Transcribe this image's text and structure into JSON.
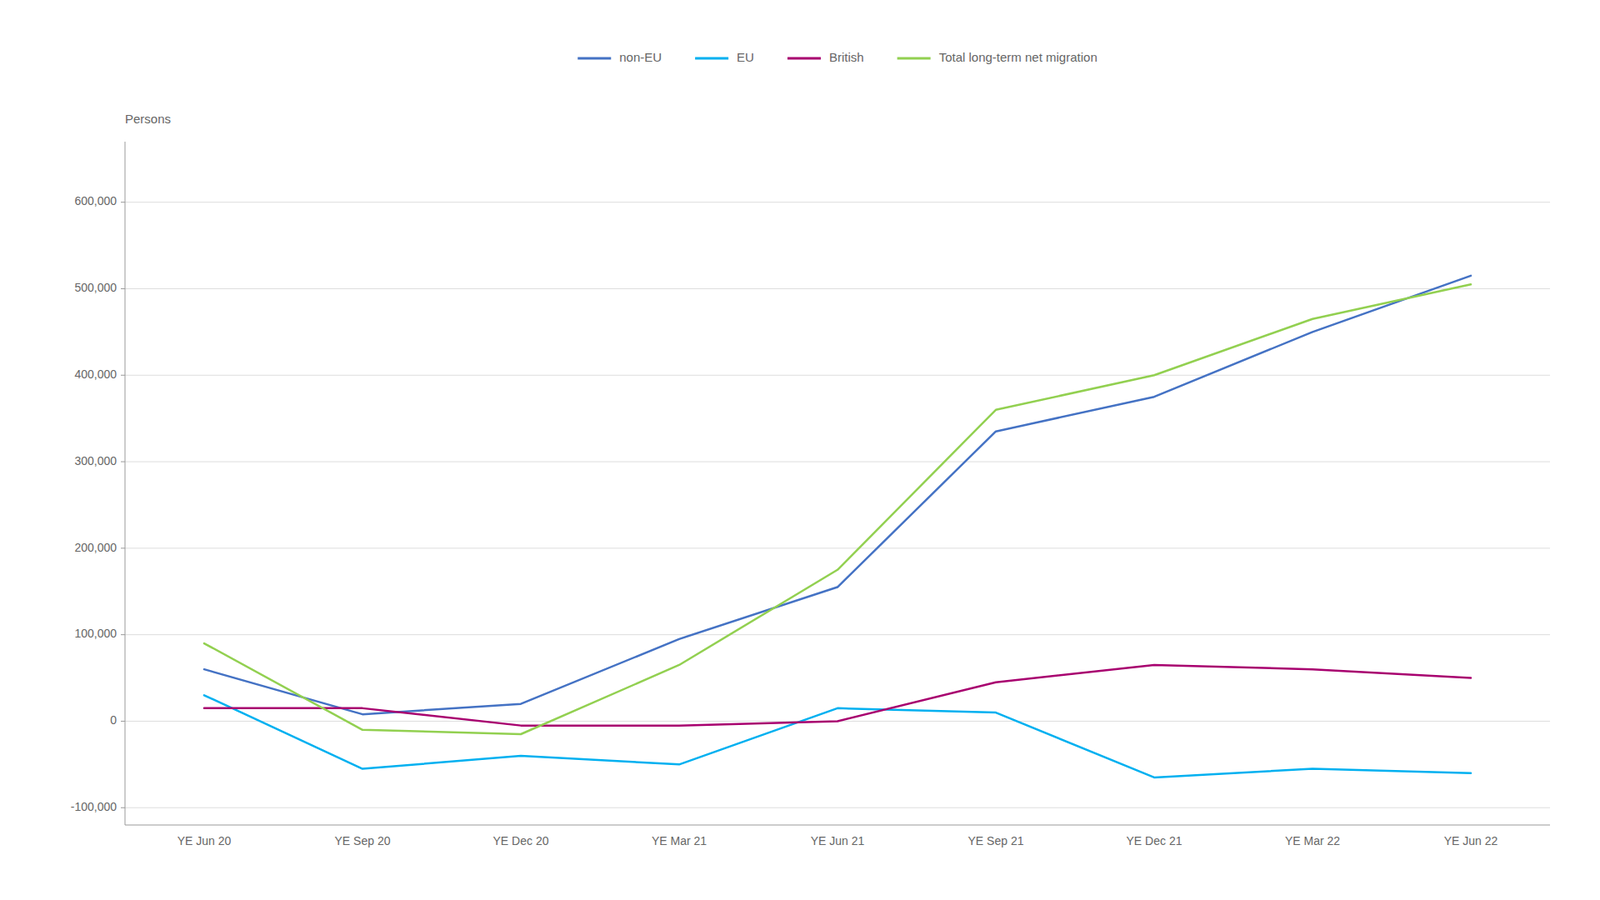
{
  "chart_data": {
    "type": "line",
    "y_label": "Persons",
    "categories": [
      "YE Jun 20",
      "YE Sep 20",
      "YE Dec 20",
      "YE Mar 21",
      "YE Jun 21",
      "YE Sep 21",
      "YE Dec 21",
      "YE Mar 22",
      "YE Jun 22"
    ],
    "series": [
      {
        "name": "non-EU",
        "color": "#4472C4",
        "values": [
          60000,
          8000,
          20000,
          95000,
          155000,
          335000,
          375000,
          450000,
          515000
        ]
      },
      {
        "name": "EU",
        "color": "#00B0F0",
        "values": [
          30000,
          -55000,
          -40000,
          -50000,
          15000,
          10000,
          -65000,
          -55000,
          -60000
        ]
      },
      {
        "name": "British",
        "color": "#A8006F",
        "values": [
          15000,
          15000,
          -5000,
          -5000,
          0,
          45000,
          65000,
          60000,
          50000
        ]
      },
      {
        "name": "Total long-term net migration",
        "color": "#92D050",
        "values": [
          90000,
          -10000,
          -15000,
          65000,
          175000,
          360000,
          400000,
          465000,
          505000
        ]
      }
    ],
    "ylim": [
      -120000,
      670000
    ],
    "yticks": [
      {
        "value": -100000,
        "label": "-100,000"
      },
      0,
      {
        "value": 100000,
        "label": "100,000"
      },
      {
        "value": 200000,
        "label": "200,000"
      },
      {
        "value": 300000,
        "label": "300,000"
      },
      {
        "value": 400000,
        "label": "400,000"
      },
      {
        "value": 500000,
        "label": "500,000"
      },
      {
        "value": 600000,
        "label": "600,000"
      }
    ],
    "grid": true,
    "legend": "top"
  }
}
